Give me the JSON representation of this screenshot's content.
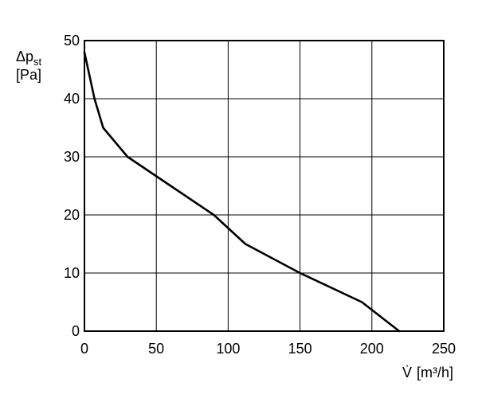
{
  "chart_data": {
    "type": "line",
    "title": "",
    "ylabel": {
      "main": "Δp",
      "sub": "st",
      "unit": "[Pa]"
    },
    "xlabel": {
      "main": "V̇",
      "unit": "[m³/h]"
    },
    "xlim": [
      0,
      250
    ],
    "ylim": [
      0,
      50
    ],
    "xticks": [
      0,
      50,
      100,
      150,
      200,
      250
    ],
    "yticks": [
      0,
      10,
      20,
      30,
      40,
      50
    ],
    "grid": true,
    "series": [
      {
        "color": "#000000",
        "x": [
          0,
          7,
          13,
          30,
          60,
          90,
          112,
          150,
          193,
          219
        ],
        "y": [
          48,
          40,
          35,
          30,
          25,
          20,
          15,
          10,
          5,
          0
        ]
      }
    ]
  }
}
